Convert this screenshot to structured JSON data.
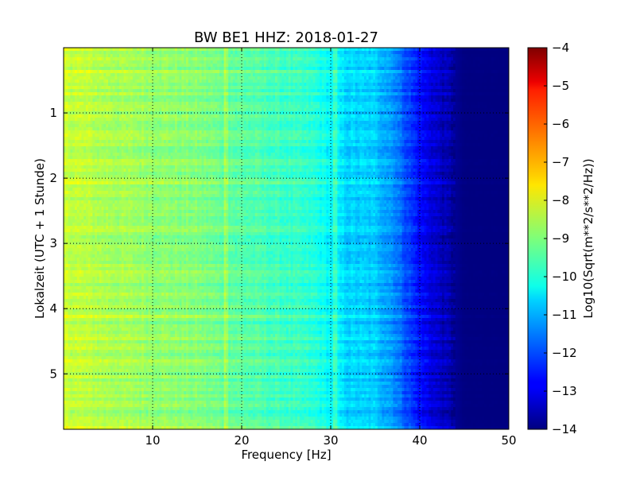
{
  "chart_data": {
    "type": "heatmap",
    "title": "BW BE1 HHZ: 2018-01-27",
    "xlabel": "Frequency [Hz]",
    "ylabel": "Lokalzeit (UTC + 1 Stunde)",
    "xlim": [
      0,
      50
    ],
    "ylim": [
      5.85,
      0
    ],
    "x_ticks": [
      10,
      20,
      30,
      40,
      50
    ],
    "x_tick_labels": [
      "10",
      "20",
      "30",
      "40",
      "50"
    ],
    "y_ticks": [
      1,
      2,
      3,
      4,
      5
    ],
    "y_tick_labels": [
      "1",
      "2",
      "3",
      "4",
      "5"
    ],
    "grid": true,
    "grid_style": "dotted",
    "colorscale": "jet",
    "value_range": [
      -14,
      -4
    ],
    "colorbar": {
      "label": "Log10(Sqrt(m**2/s**2/Hz))",
      "ticks": [
        -4,
        -5,
        -6,
        -7,
        -8,
        -9,
        -10,
        -11,
        -12,
        -13,
        -14
      ],
      "tick_labels": [
        "−4",
        "−5",
        "−6",
        "−7",
        "−8",
        "−9",
        "−10",
        "−11",
        "−12",
        "−13",
        "−14"
      ]
    },
    "spectrum_profile": {
      "frequency_hz": [
        0,
        5,
        10,
        15,
        20,
        25,
        28,
        30,
        32,
        35,
        37,
        38,
        40,
        42,
        44,
        45,
        50
      ],
      "log10_amplitude": [
        -8.3,
        -8.6,
        -8.8,
        -9.0,
        -9.4,
        -9.7,
        -9.9,
        -10.3,
        -10.7,
        -10.8,
        -11.3,
        -11.8,
        -12.7,
        -13.3,
        -13.8,
        -14,
        -14
      ]
    }
  }
}
